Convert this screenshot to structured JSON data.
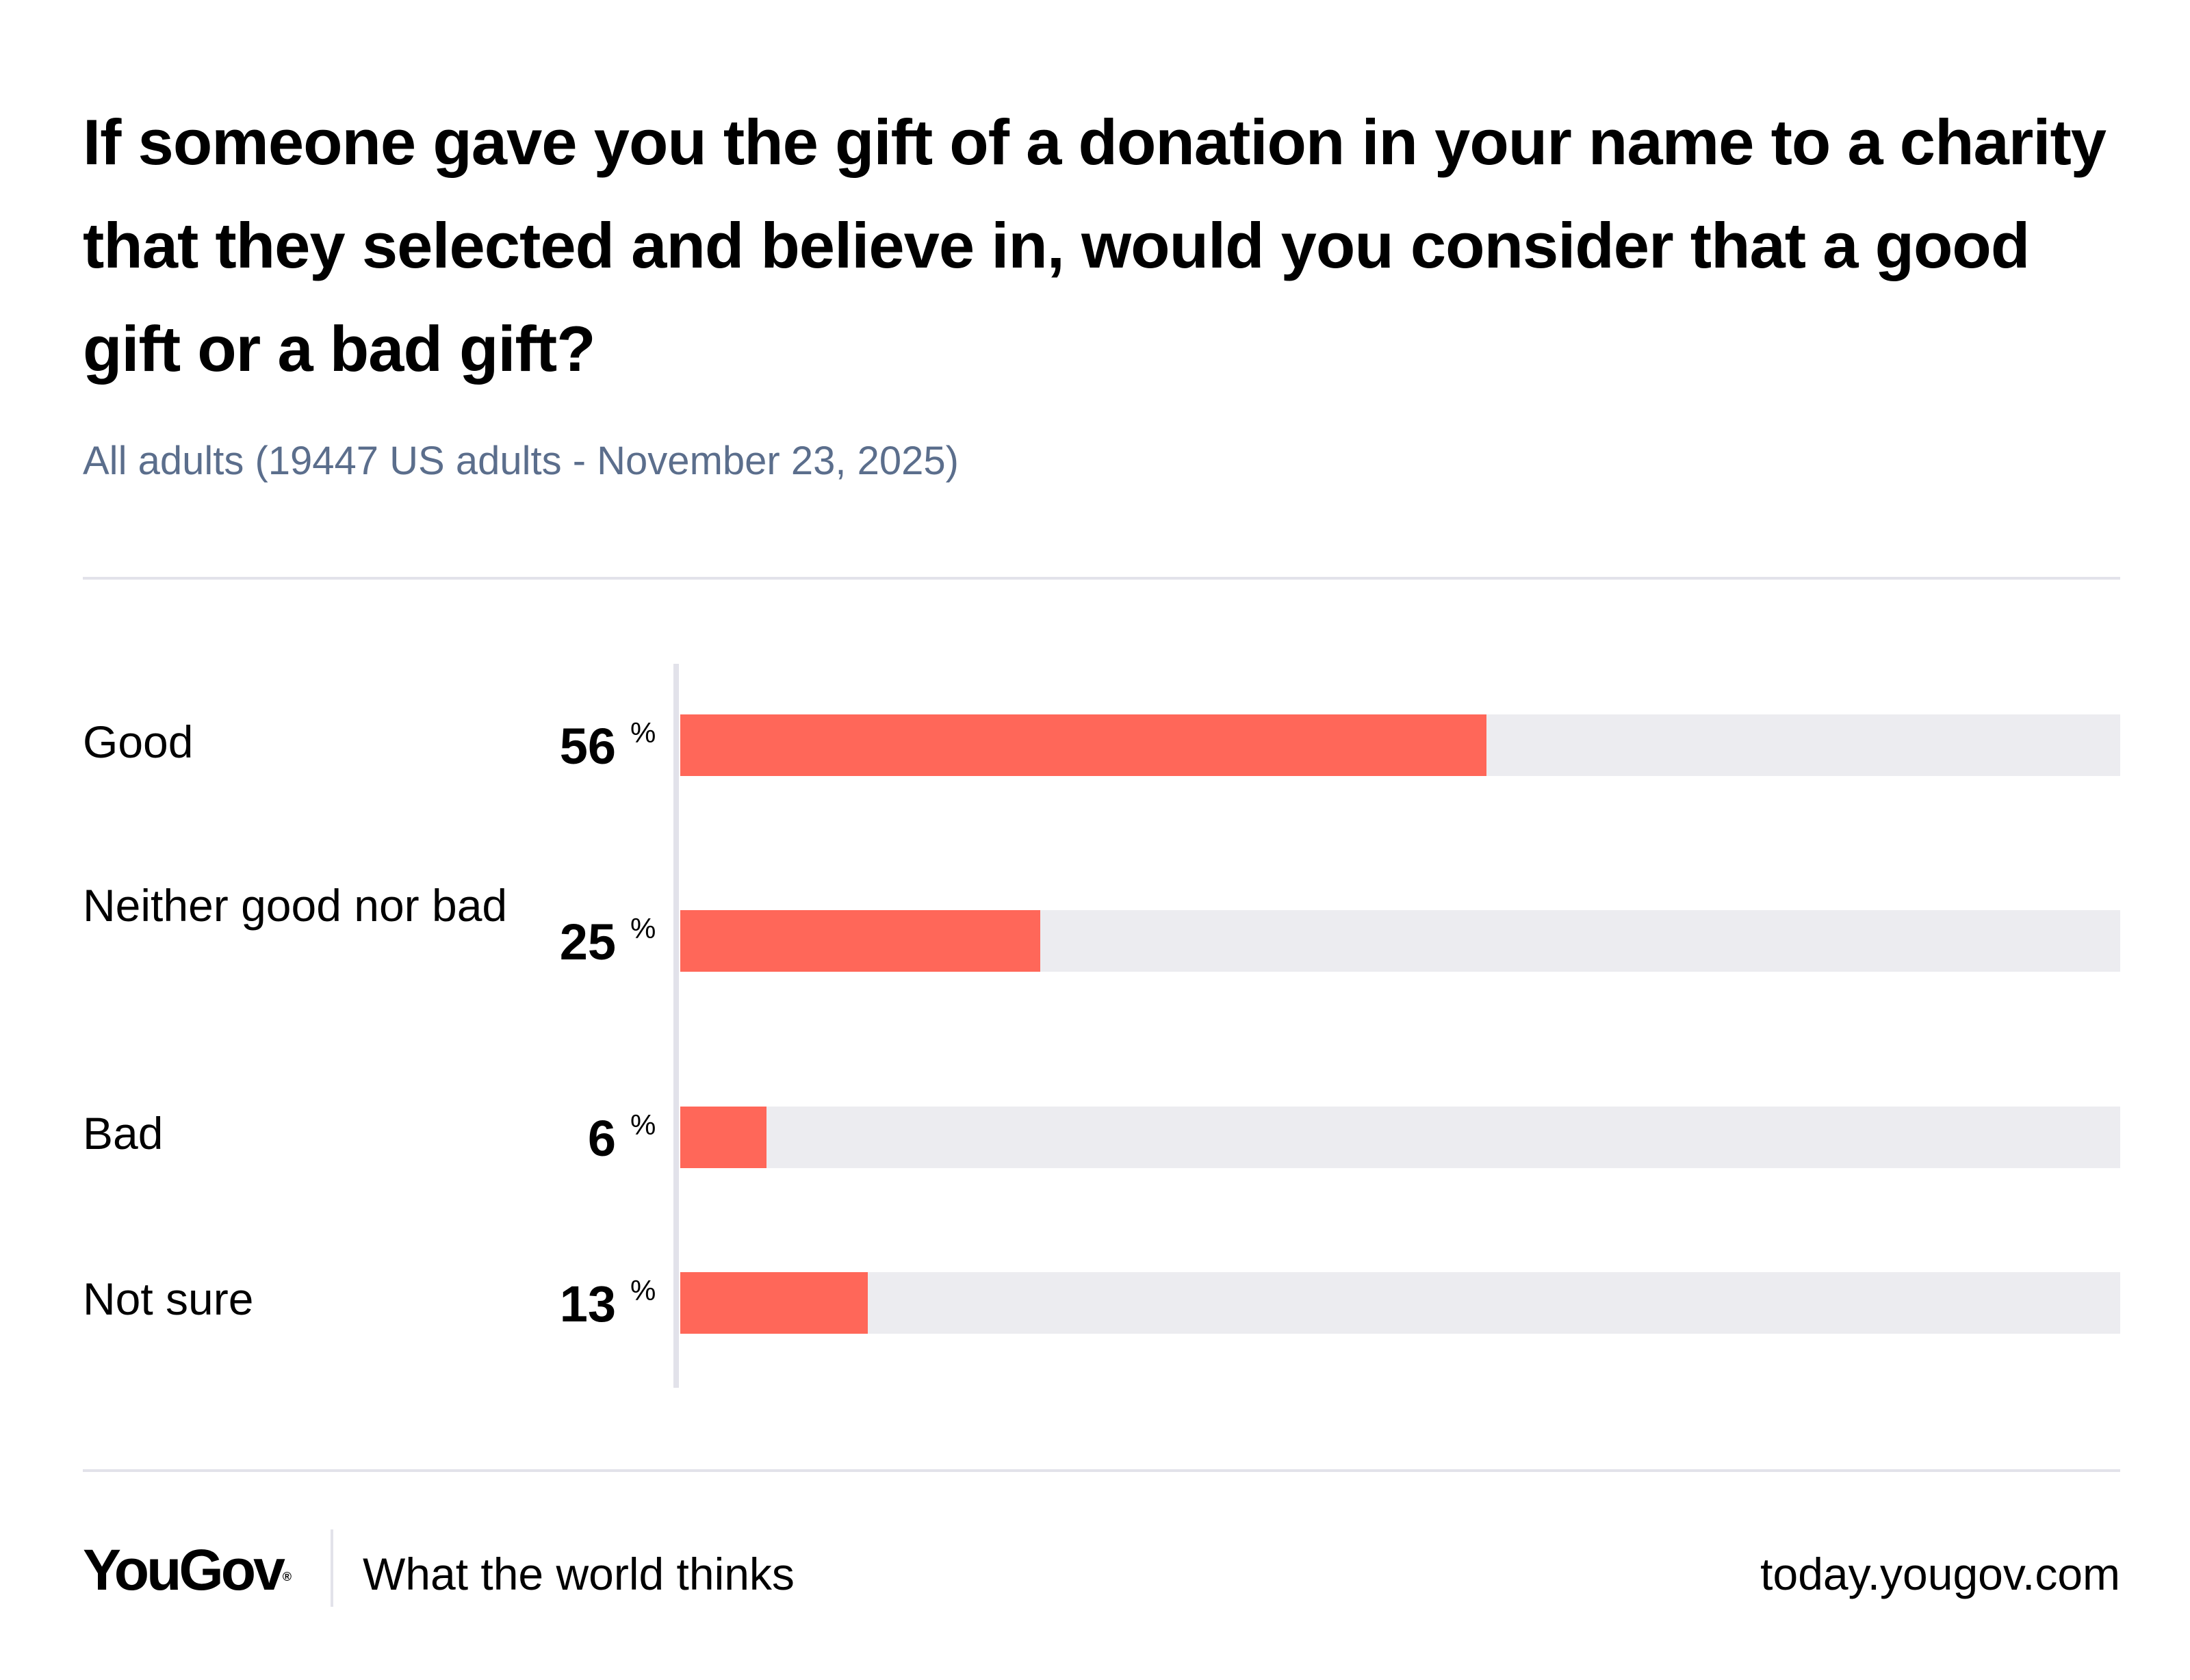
{
  "header": {
    "title": "If someone gave you the gift of a donation in your name to a charity that they selected and believe in, would you consider that a good gift or a bad gift?",
    "subtitle": "All adults (19447 US adults - November 23, 2025)"
  },
  "chart_data": {
    "type": "bar",
    "orientation": "horizontal",
    "categories": [
      "Good",
      "Neither good nor bad",
      "Bad",
      "Not sure"
    ],
    "values": [
      56,
      25,
      6,
      13
    ],
    "value_labels": [
      "56",
      "25",
      "6",
      "13"
    ],
    "unit": "%",
    "xlim": [
      0,
      100
    ],
    "grid": false,
    "colors": {
      "bar": "#ff6759",
      "track": "#ececf0",
      "axis": "#e2e2ea"
    }
  },
  "footer": {
    "brand": "YouGov",
    "registered_mark": "®",
    "tagline": "What the world thinks",
    "url": "today.yougov.com"
  }
}
